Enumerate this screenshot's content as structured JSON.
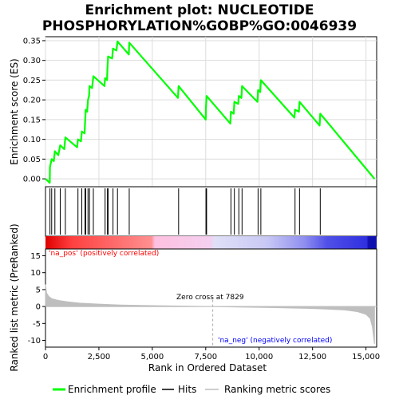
{
  "title_line1": "Enrichment plot: NUCLEOTIDE",
  "title_line2": "PHOSPHORYLATION%GOBP%GO:0046939",
  "colors": {
    "enrichment": "#00ff00",
    "hits": "#000000",
    "metric": "#bebebe",
    "pos_label": "#ff0000",
    "neg_label": "#0000ff",
    "grid": "#dcdcdc"
  },
  "chart_data": [
    {
      "type": "line",
      "name": "enrichment-profile",
      "ylabel": "Enrichment score (ES)",
      "ylim": [
        -0.02,
        0.36
      ],
      "xlim": [
        0,
        15500
      ],
      "yticks": [
        0.0,
        0.05,
        0.1,
        0.15,
        0.2,
        0.25,
        0.3,
        0.35
      ],
      "ytick_labels": [
        "0.00",
        "0.05",
        "0.10",
        "0.15",
        "0.20",
        "0.25",
        "0.30",
        "0.35"
      ],
      "grid": true,
      "points": [
        [
          0,
          0.0
        ],
        [
          200,
          -0.01
        ],
        [
          210,
          0.03
        ],
        [
          290,
          0.05
        ],
        [
          390,
          0.045
        ],
        [
          440,
          0.07
        ],
        [
          600,
          0.06
        ],
        [
          690,
          0.085
        ],
        [
          880,
          0.075
        ],
        [
          930,
          0.105
        ],
        [
          1480,
          0.08
        ],
        [
          1520,
          0.1
        ],
        [
          1660,
          0.095
        ],
        [
          1700,
          0.12
        ],
        [
          1830,
          0.115
        ],
        [
          1850,
          0.14
        ],
        [
          1870,
          0.16
        ],
        [
          1880,
          0.175
        ],
        [
          1950,
          0.17
        ],
        [
          1990,
          0.2
        ],
        [
          2040,
          0.21
        ],
        [
          2060,
          0.235
        ],
        [
          2180,
          0.23
        ],
        [
          2240,
          0.26
        ],
        [
          2760,
          0.235
        ],
        [
          2790,
          0.255
        ],
        [
          2880,
          0.25
        ],
        [
          2900,
          0.28
        ],
        [
          2930,
          0.31
        ],
        [
          3120,
          0.305
        ],
        [
          3160,
          0.33
        ],
        [
          3320,
          0.325
        ],
        [
          3370,
          0.348
        ],
        [
          3900,
          0.315
        ],
        [
          3920,
          0.345
        ],
        [
          6200,
          0.205
        ],
        [
          6230,
          0.235
        ],
        [
          7500,
          0.15
        ],
        [
          7510,
          0.18
        ],
        [
          7540,
          0.21
        ],
        [
          8650,
          0.14
        ],
        [
          8680,
          0.17
        ],
        [
          8810,
          0.165
        ],
        [
          8840,
          0.195
        ],
        [
          9020,
          0.19
        ],
        [
          9050,
          0.21
        ],
        [
          9170,
          0.205
        ],
        [
          9200,
          0.235
        ],
        [
          9920,
          0.195
        ],
        [
          9950,
          0.225
        ],
        [
          10050,
          0.22
        ],
        [
          10080,
          0.25
        ],
        [
          11650,
          0.155
        ],
        [
          11680,
          0.175
        ],
        [
          11860,
          0.17
        ],
        [
          11890,
          0.195
        ],
        [
          12830,
          0.135
        ],
        [
          12860,
          0.165
        ],
        [
          15400,
          0.0
        ]
      ]
    },
    {
      "type": "table",
      "name": "hits",
      "xlim": [
        0,
        15500
      ],
      "positions": [
        210,
        290,
        440,
        690,
        930,
        1520,
        1700,
        1850,
        1870,
        1880,
        1990,
        2060,
        2240,
        2790,
        2900,
        2930,
        3160,
        3370,
        3920,
        6230,
        7510,
        7540,
        8680,
        8840,
        9050,
        9200,
        9950,
        10080,
        11680,
        11890,
        12860
      ]
    },
    {
      "type": "area",
      "name": "ranked-list-metric",
      "xlabel": "Rank in Ordered Dataset",
      "ylabel": "Ranked list metric (PreRanked)",
      "ylim": [
        -12,
        17
      ],
      "xlim": [
        0,
        15500
      ],
      "yticks": [
        -10,
        -5,
        0,
        5,
        10,
        15
      ],
      "ytick_labels": [
        "-10",
        "-5",
        "0",
        "5",
        "10",
        "15"
      ],
      "xticks": [
        0,
        2500,
        5000,
        7500,
        10000,
        12500,
        15000
      ],
      "xtick_labels": [
        "0",
        "2,500",
        "5,000",
        "7,500",
        "10,000",
        "12,500",
        "15,000"
      ],
      "zero_cross": 7829,
      "points": [
        [
          0,
          6.5
        ],
        [
          50,
          4.0
        ],
        [
          150,
          3.0
        ],
        [
          300,
          2.3
        ],
        [
          600,
          1.8
        ],
        [
          1000,
          1.4
        ],
        [
          1600,
          1.0
        ],
        [
          2500,
          0.7
        ],
        [
          3500,
          0.45
        ],
        [
          5000,
          0.25
        ],
        [
          6500,
          0.1
        ],
        [
          7829,
          0.0
        ],
        [
          9000,
          -0.15
        ],
        [
          10500,
          -0.3
        ],
        [
          12000,
          -0.5
        ],
        [
          13000,
          -0.7
        ],
        [
          14000,
          -1.0
        ],
        [
          14600,
          -1.5
        ],
        [
          15000,
          -2.3
        ],
        [
          15200,
          -3.5
        ],
        [
          15300,
          -6.0
        ],
        [
          15400,
          -11.0
        ]
      ]
    }
  ],
  "annotations": {
    "pos": "'na_pos' (positively correlated)",
    "neg": "'na_neg' (negatively correlated)",
    "zero_cross": "Zero cross at 7829"
  },
  "legend": {
    "enrichment": "Enrichment profile",
    "hits": "Hits",
    "metric": "Ranking metric scores"
  }
}
